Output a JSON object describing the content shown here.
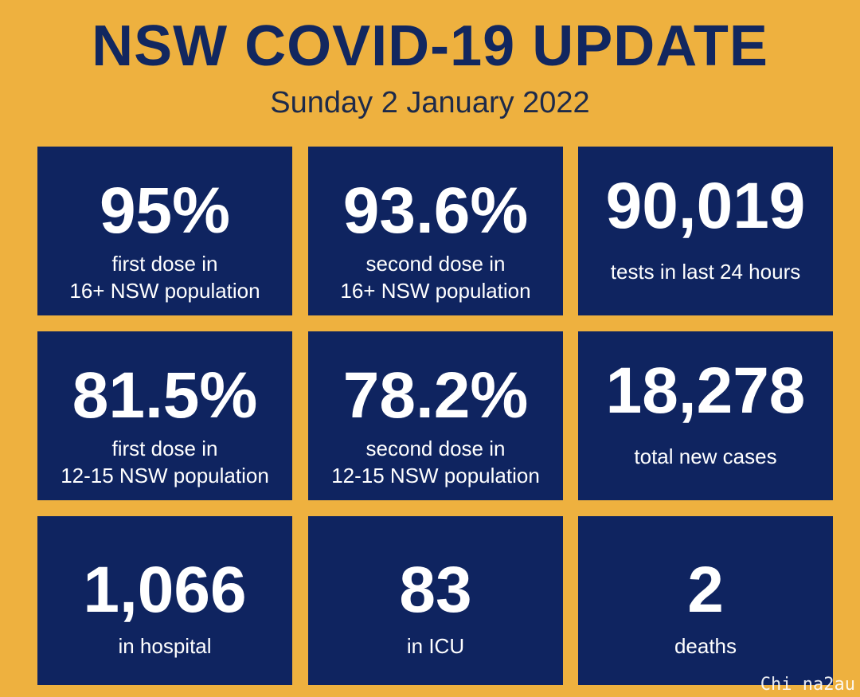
{
  "header": {
    "title": "NSW COVID-19 UPDATE",
    "date": "Sunday 2 January 2022"
  },
  "tiles": [
    {
      "value": "95%",
      "label_line1": "first dose in",
      "label_line2": "16+ NSW population"
    },
    {
      "value": "93.6%",
      "label_line1": "second dose in",
      "label_line2": "16+ NSW population"
    },
    {
      "value": "90,019",
      "label_line1": "tests in last 24 hours"
    },
    {
      "value": "81.5%",
      "label_line1": "first dose in",
      "label_line2": "12-15 NSW population"
    },
    {
      "value": "78.2%",
      "label_line1": "second dose in",
      "label_line2": "12-15 NSW population"
    },
    {
      "value": "18,278",
      "label_line1": "total new cases"
    },
    {
      "value": "1,066",
      "label_line1": "in hospital"
    },
    {
      "value": "83",
      "label_line1": "in ICU"
    },
    {
      "value": "2",
      "label_line1": "deaths"
    }
  ],
  "watermark": "Chi na2au",
  "colors": {
    "background": "#eeb13f",
    "tile": "#0f2460",
    "title": "#12275f",
    "tile_text": "#ffffff"
  }
}
